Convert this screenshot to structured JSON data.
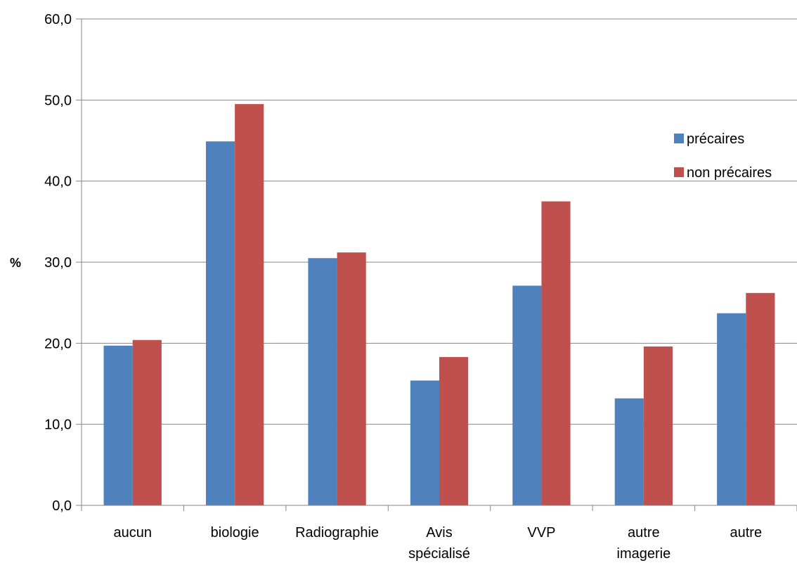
{
  "chart_data": {
    "type": "bar",
    "ylabel": "%",
    "ylim": [
      0,
      60
    ],
    "yticks": [
      "0,0",
      "10,0",
      "20,0",
      "30,0",
      "40,0",
      "50,0",
      "60,0"
    ],
    "categories": [
      [
        "aucun"
      ],
      [
        "biologie"
      ],
      [
        "Radiographie"
      ],
      [
        "Avis",
        "spécialisé"
      ],
      [
        "VVP"
      ],
      [
        "autre",
        "imagerie"
      ],
      [
        "autre"
      ]
    ],
    "series": [
      {
        "name": "précaires",
        "color": "#4F81BD",
        "values": [
          19.7,
          44.9,
          30.5,
          15.4,
          27.1,
          13.2,
          23.7
        ]
      },
      {
        "name": "non précaires",
        "color": "#C0504D",
        "values": [
          20.4,
          49.5,
          31.2,
          18.3,
          37.5,
          19.6,
          26.2
        ]
      }
    ],
    "grid": true,
    "legend_position": "right"
  }
}
